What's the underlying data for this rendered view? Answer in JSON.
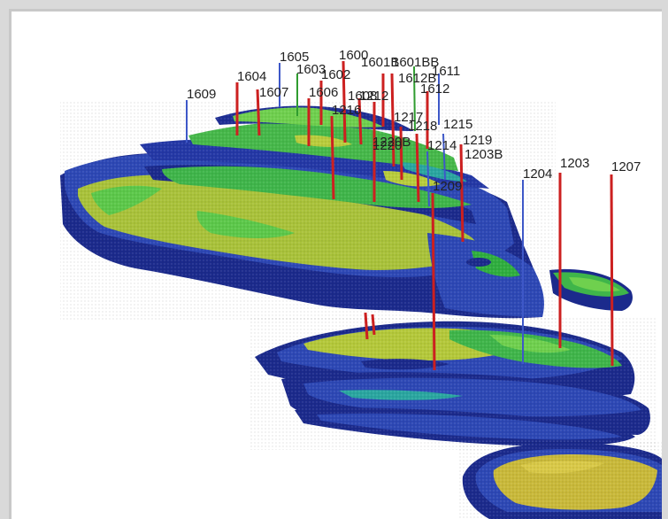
{
  "colors": {
    "deep_blue": "#1b2a8c",
    "mid_blue": "#2d48b5",
    "green": "#2fae3f",
    "light_green": "#5cc84a",
    "yellow_green": "#b4c83a",
    "yellow": "#c9b93a",
    "well_red": "#cc2020",
    "well_blue": "#3e58c8",
    "well_green": "#2f9c2f"
  },
  "wells": [
    {
      "label": "1605",
      "color": "blue"
    },
    {
      "label": "1604",
      "color": "red"
    },
    {
      "label": "1607",
      "color": "red"
    },
    {
      "label": "1603",
      "color": "green"
    },
    {
      "label": "1602",
      "color": "red"
    },
    {
      "label": "1609",
      "color": "blue"
    },
    {
      "label": "1606",
      "color": "red"
    },
    {
      "label": "1608",
      "color": "red"
    },
    {
      "label": "1600",
      "color": "red"
    },
    {
      "label": "1612B",
      "color": "red"
    },
    {
      "label": "1601B",
      "color": "red"
    },
    {
      "label": "1601BB",
      "color": "green"
    },
    {
      "label": "1611",
      "color": "red"
    },
    {
      "label": "1612",
      "color": "red"
    },
    {
      "label": "1216",
      "color": "red"
    },
    {
      "label": "1212",
      "color": "red"
    },
    {
      "label": "1217",
      "color": "red"
    },
    {
      "label": "1218",
      "color": "red"
    },
    {
      "label": "1215",
      "color": "blue"
    },
    {
      "label": "1220B",
      "color": "red"
    },
    {
      "label": "1214",
      "color": "blue"
    },
    {
      "label": "1219",
      "color": "red"
    },
    {
      "label": "1203B",
      "color": "red"
    },
    {
      "label": "1209",
      "color": "red"
    },
    {
      "label": "1204",
      "color": "blue"
    },
    {
      "label": "1203",
      "color": "red"
    },
    {
      "label": "1207",
      "color": "red"
    }
  ]
}
